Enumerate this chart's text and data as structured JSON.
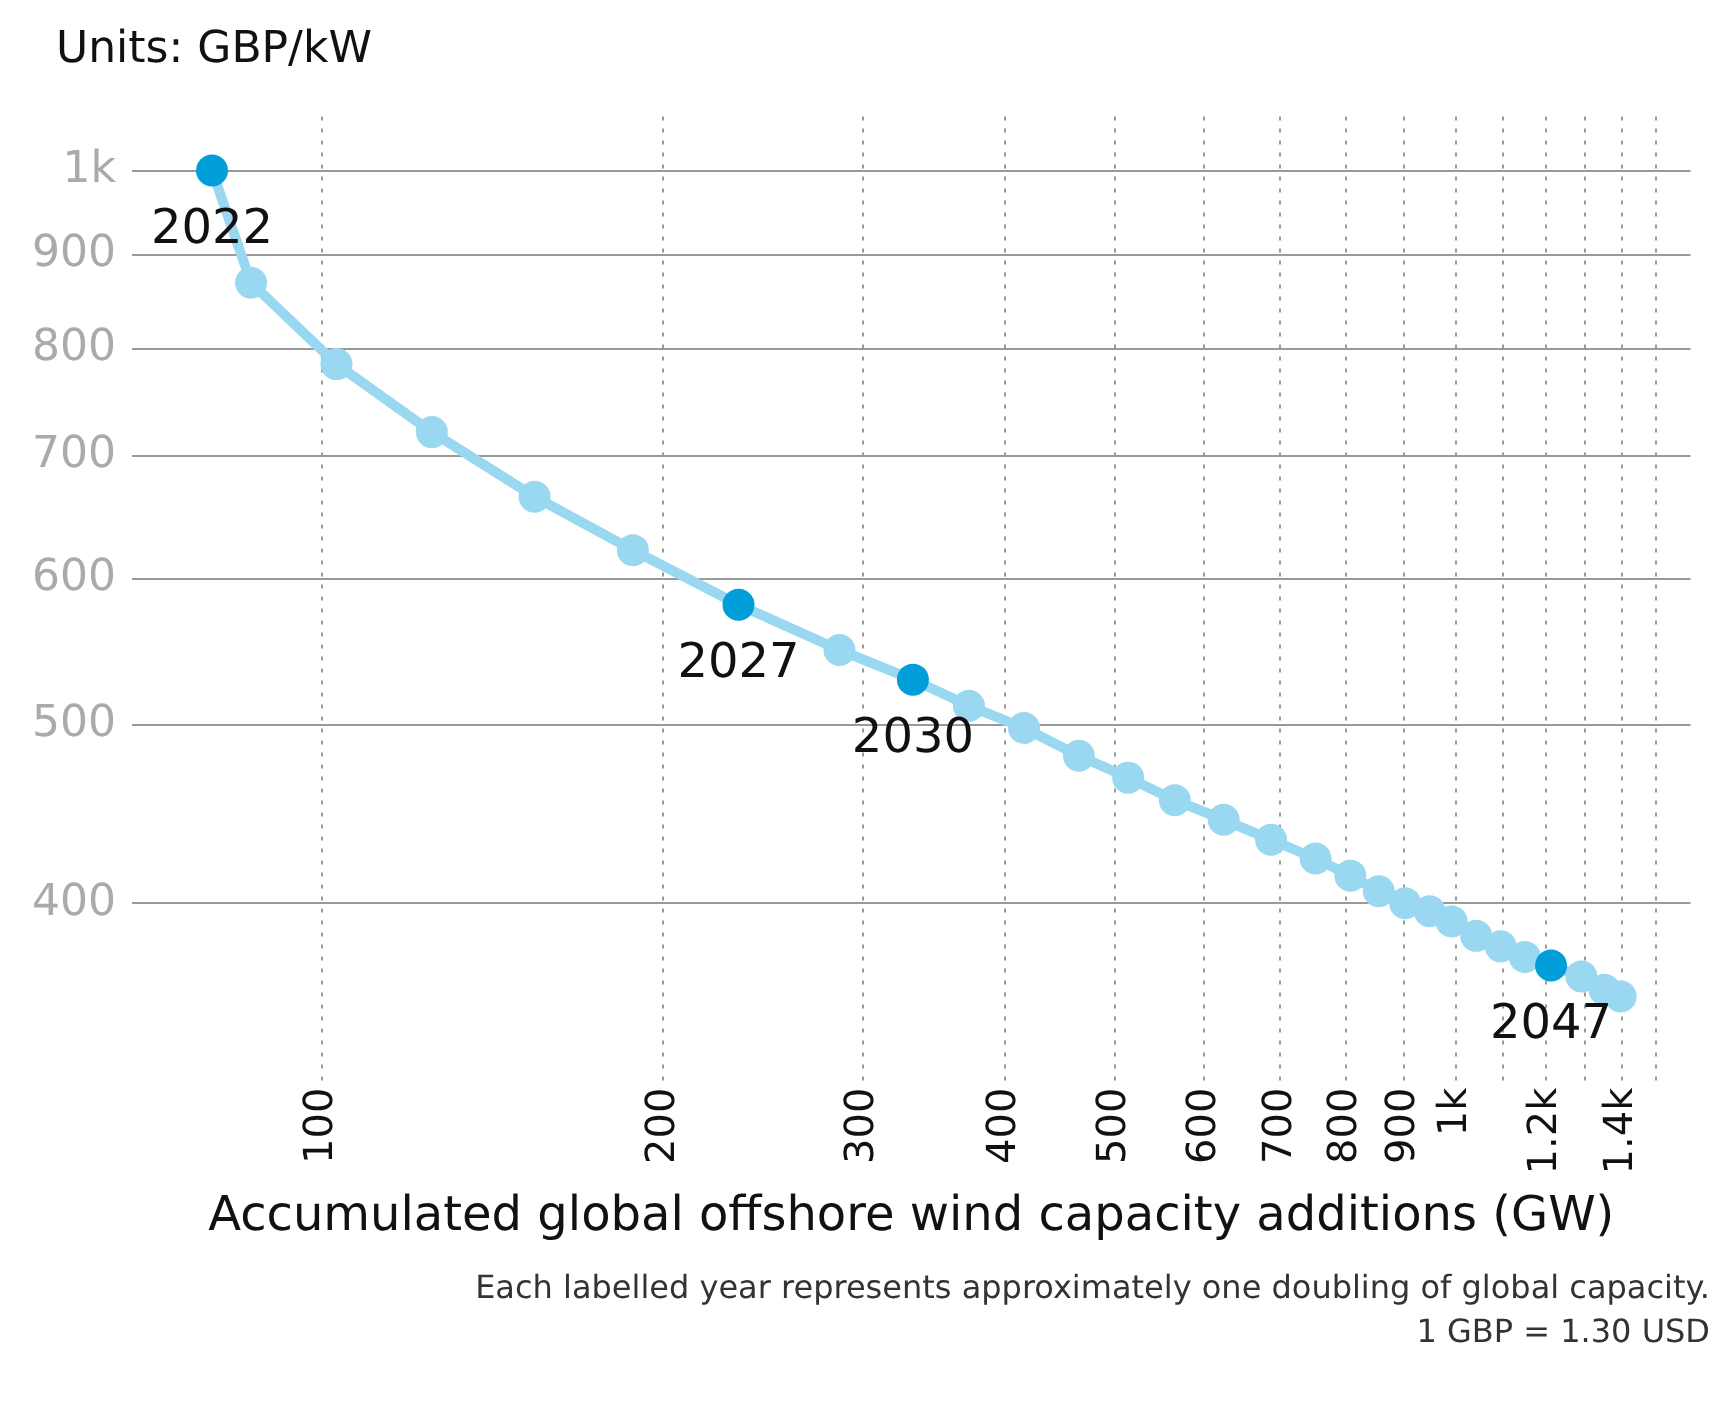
{
  "chart_data": {
    "type": "line",
    "ylabel": "Units: GBP/kW",
    "xlabel": "Accumulated global offshore wind capacity additions (GW)",
    "x": [
      80,
      86.6,
      103,
      125,
      154,
      188,
      233,
      286,
      332,
      372,
      416,
      465,
      514,
      565,
      624,
      687,
      752,
      807,
      855,
      902,
      948,
      991,
      1042,
      1095,
      1150,
      1213,
      1290,
      1352,
      1397
    ],
    "values": [
      1000,
      869,
      785,
      721,
      665,
      622,
      581,
      549,
      529,
      512,
      498,
      481,
      468,
      455,
      444,
      433,
      423,
      414,
      406,
      400,
      396,
      391,
      384,
      379,
      374,
      370,
      365,
      359,
      356
    ],
    "color": "#99d8f0",
    "colors": [
      "#009fda",
      "#99d8f0",
      "#99d8f0",
      "#99d8f0",
      "#99d8f0",
      "#99d8f0",
      "#009fda",
      "#99d8f0",
      "#009fda",
      "#99d8f0",
      "#99d8f0",
      "#99d8f0",
      "#99d8f0",
      "#99d8f0",
      "#99d8f0",
      "#99d8f0",
      "#99d8f0",
      "#99d8f0",
      "#99d8f0",
      "#99d8f0",
      "#99d8f0",
      "#99d8f0",
      "#99d8f0",
      "#99d8f0",
      "#99d8f0",
      "#009fda",
      "#99d8f0",
      "#99d8f0",
      "#99d8f0"
    ],
    "xlim": [
      68,
      1610
    ],
    "ylim": [
      320,
      1070
    ],
    "xticks": [
      100,
      200,
      300,
      400,
      500,
      600,
      700,
      800,
      900,
      {
        "value": 1000,
        "label": "1k"
      },
      {
        "value": 1100,
        "label": null
      },
      {
        "value": 1200,
        "label": "1.2k"
      },
      {
        "value": 1300,
        "label": null
      },
      {
        "value": 1400,
        "label": "1.4k"
      },
      {
        "value": 1500,
        "label": null
      }
    ],
    "yticks": [
      400,
      500,
      600,
      700,
      800,
      900,
      {
        "value": 1000,
        "label": "1k"
      }
    ],
    "log": "xy",
    "grid": true,
    "marker": "circle",
    "line_style": "solid",
    "annotations": [
      {
        "text": "2022",
        "x": 80,
        "y": 1000
      },
      {
        "text": "2027",
        "x": 233,
        "y": 581
      },
      {
        "text": "2030",
        "x": 332,
        "y": 529
      },
      {
        "text": "2047",
        "x": 1213,
        "y": 370
      },
      "Each labelled year represents approximately one doubling of global capacity.",
      "1 GBP = 1.30 USD"
    ]
  }
}
